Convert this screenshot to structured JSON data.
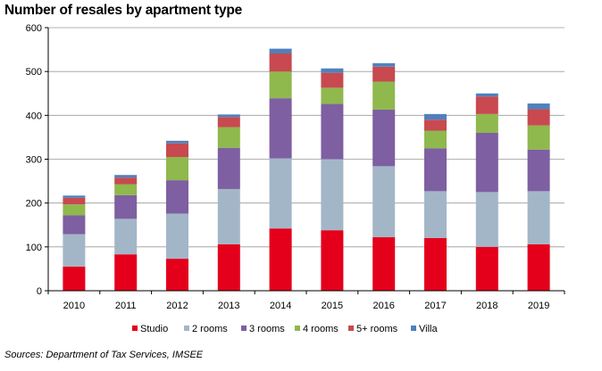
{
  "chart_data": {
    "type": "bar",
    "stacked": true,
    "title": "Number of resales by apartment type",
    "xlabel": "",
    "ylabel": "",
    "ylim": [
      0,
      600
    ],
    "yticks": [
      0,
      100,
      200,
      300,
      400,
      500,
      600
    ],
    "categories": [
      "2010",
      "2011",
      "2012",
      "2013",
      "2014",
      "2015",
      "2016",
      "2017",
      "2018",
      "2019"
    ],
    "series": [
      {
        "name": "Studio",
        "color": "#e4001b",
        "values": [
          55,
          83,
          73,
          106,
          142,
          138,
          122,
          120,
          100,
          106
        ]
      },
      {
        "name": "2 rooms",
        "color": "#a3b6c8",
        "values": [
          74,
          81,
          103,
          126,
          160,
          162,
          162,
          107,
          125,
          121
        ]
      },
      {
        "name": "3 rooms",
        "color": "#7e5fa1",
        "values": [
          43,
          54,
          76,
          94,
          137,
          126,
          129,
          98,
          135,
          95
        ]
      },
      {
        "name": "4 rooms",
        "color": "#8fb84d",
        "values": [
          25,
          25,
          53,
          47,
          61,
          37,
          64,
          40,
          43,
          55
        ]
      },
      {
        "name": "5+ rooms",
        "color": "#c8494f",
        "values": [
          15,
          15,
          31,
          23,
          41,
          34,
          34,
          25,
          40,
          37
        ]
      },
      {
        "name": "Villa",
        "color": "#4f81bd",
        "values": [
          5,
          6,
          6,
          6,
          11,
          10,
          8,
          13,
          7,
          13
        ]
      }
    ],
    "legend_position": "bottom"
  },
  "source_note": "Sources: Department of Tax Services, IMSEE"
}
